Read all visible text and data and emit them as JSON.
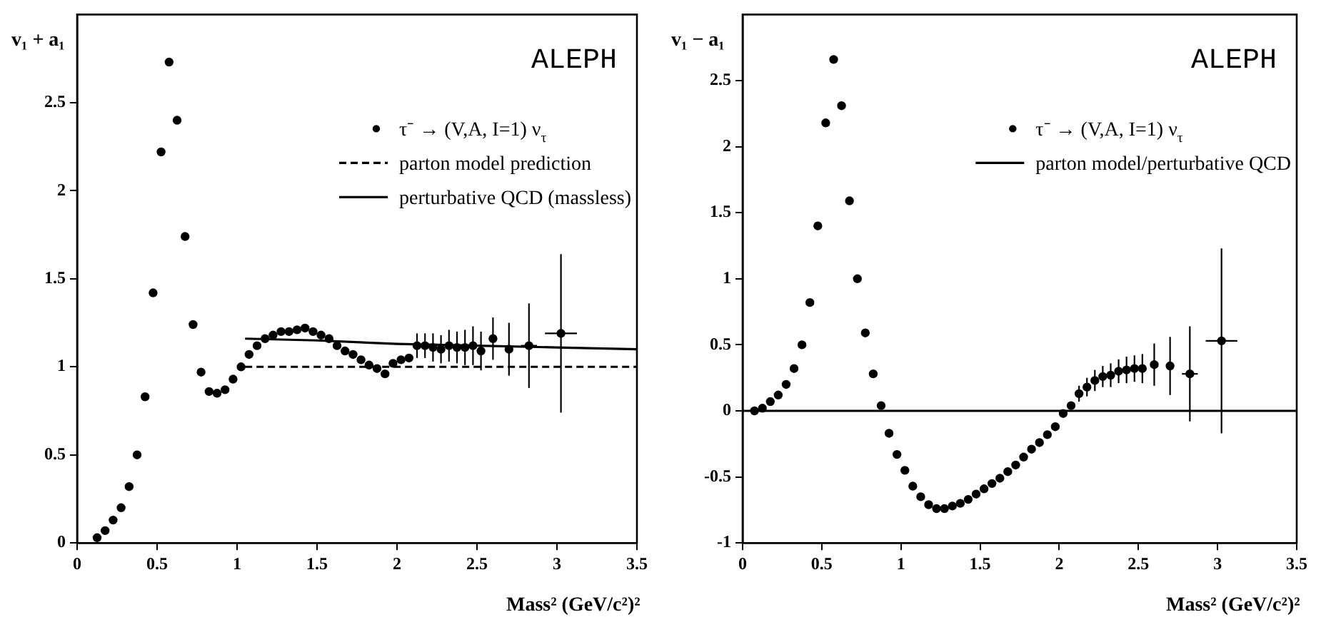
{
  "chart_data": [
    {
      "type": "scatter",
      "ylabel": "v₁ + a₁",
      "xlabel": "Mass² (GeV/c²)²",
      "annotations": [
        "ALEPH"
      ],
      "xlim": [
        0,
        3.5
      ],
      "xticks": [
        0,
        0.5,
        1,
        1.5,
        2,
        2.5,
        3,
        3.5
      ],
      "ylim": [
        0,
        3
      ],
      "yticks": [
        0,
        0.5,
        1,
        1.5,
        2,
        2.5
      ],
      "grid": false,
      "legend": "top right",
      "series": [
        {
          "name": "τ⁻ → (V,A, I=1) ν$_{τ}$",
          "color": "#000000",
          "marker": "circle",
          "x": [
            0.125,
            0.175,
            0.225,
            0.275,
            0.325,
            0.375,
            0.425,
            0.475,
            0.525,
            0.575,
            0.625,
            0.675,
            0.725,
            0.775,
            0.825,
            0.875,
            0.925,
            0.975,
            1.025,
            1.075,
            1.125,
            1.175,
            1.225,
            1.275,
            1.325,
            1.375,
            1.425,
            1.475,
            1.525,
            1.575,
            1.625,
            1.675,
            1.725,
            1.775,
            1.825,
            1.875,
            1.925,
            1.975,
            2.025,
            2.075,
            2.125,
            2.175,
            2.225,
            2.275,
            2.325,
            2.375,
            2.425,
            2.475,
            2.525,
            2.6,
            2.7,
            2.825,
            3.025
          ],
          "values": [
            0.03,
            0.07,
            0.13,
            0.2,
            0.32,
            0.5,
            0.83,
            1.42,
            2.22,
            2.73,
            2.4,
            1.74,
            1.24,
            0.97,
            0.86,
            0.85,
            0.87,
            0.93,
            1.0,
            1.07,
            1.12,
            1.16,
            1.18,
            1.2,
            1.2,
            1.21,
            1.22,
            1.2,
            1.18,
            1.16,
            1.12,
            1.09,
            1.07,
            1.04,
            1.01,
            0.99,
            0.96,
            1.02,
            1.04,
            1.05,
            1.12,
            1.12,
            1.11,
            1.1,
            1.12,
            1.11,
            1.11,
            1.12,
            1.09,
            1.16,
            1.1,
            1.12,
            1.19
          ],
          "errors": [
            null,
            null,
            null,
            null,
            null,
            null,
            null,
            null,
            null,
            null,
            null,
            null,
            null,
            null,
            null,
            null,
            null,
            null,
            null,
            null,
            null,
            null,
            null,
            null,
            null,
            null,
            null,
            null,
            null,
            null,
            null,
            null,
            null,
            null,
            null,
            null,
            null,
            null,
            null,
            null,
            0.07,
            0.07,
            0.08,
            0.08,
            0.09,
            0.09,
            0.1,
            0.11,
            0.11,
            0.12,
            0.15,
            0.24,
            0.45
          ],
          "xerrors": [
            null,
            null,
            null,
            null,
            null,
            null,
            null,
            null,
            null,
            null,
            null,
            null,
            null,
            null,
            null,
            null,
            null,
            null,
            null,
            null,
            null,
            null,
            null,
            null,
            null,
            null,
            null,
            null,
            null,
            null,
            null,
            null,
            null,
            null,
            null,
            null,
            null,
            null,
            null,
            null,
            null,
            null,
            null,
            null,
            null,
            null,
            null,
            null,
            null,
            null,
            null,
            0.05,
            0.1
          ]
        },
        {
          "name": "parton model prediction",
          "type": "line",
          "color": "#000000",
          "line_style": "dashed",
          "marker": "none",
          "x": [
            1.05,
            3.5
          ],
          "values": [
            1,
            1
          ]
        },
        {
          "name": "perturbative QCD (massless)",
          "type": "line",
          "color": "#000000",
          "line_style": "solid",
          "marker": "none",
          "x": [
            1.05,
            1.5,
            2,
            2.5,
            3,
            3.5
          ],
          "values": [
            1.16,
            1.15,
            1.13,
            1.12,
            1.11,
            1.1
          ]
        }
      ]
    },
    {
      "type": "scatter",
      "ylabel": "v₁ − a₁",
      "xlabel": "Mass² (GeV/c²)²",
      "annotations": [
        "ALEPH"
      ],
      "xlim": [
        0,
        3.5
      ],
      "xticks": [
        0,
        0.5,
        1,
        1.5,
        2,
        2.5,
        3,
        3.5
      ],
      "ylim": [
        -1,
        3
      ],
      "yticks": [
        -1,
        -0.5,
        0,
        0.5,
        1,
        1.5,
        2,
        2.5
      ],
      "grid": false,
      "legend": "top right",
      "series": [
        {
          "name": "τ⁻ → (V,A, I=1) ν$_{τ}$",
          "color": "#000000",
          "marker": "circle",
          "x": [
            0.075,
            0.125,
            0.175,
            0.225,
            0.275,
            0.325,
            0.375,
            0.425,
            0.475,
            0.525,
            0.575,
            0.625,
            0.675,
            0.725,
            0.775,
            0.825,
            0.875,
            0.925,
            0.975,
            1.025,
            1.075,
            1.125,
            1.175,
            1.225,
            1.275,
            1.325,
            1.375,
            1.425,
            1.475,
            1.525,
            1.575,
            1.625,
            1.675,
            1.725,
            1.775,
            1.825,
            1.875,
            1.925,
            1.975,
            2.025,
            2.075,
            2.125,
            2.175,
            2.225,
            2.275,
            2.325,
            2.375,
            2.425,
            2.475,
            2.525,
            2.6,
            2.7,
            2.825,
            3.025
          ],
          "values": [
            0.0,
            0.02,
            0.07,
            0.12,
            0.2,
            0.32,
            0.5,
            0.82,
            1.4,
            2.18,
            2.66,
            2.31,
            1.59,
            1.0,
            0.59,
            0.28,
            0.04,
            -0.17,
            -0.33,
            -0.45,
            -0.57,
            -0.65,
            -0.71,
            -0.74,
            -0.74,
            -0.72,
            -0.7,
            -0.67,
            -0.63,
            -0.59,
            -0.55,
            -0.51,
            -0.46,
            -0.41,
            -0.35,
            -0.29,
            -0.24,
            -0.18,
            -0.12,
            -0.02,
            0.04,
            0.13,
            0.18,
            0.23,
            0.26,
            0.27,
            0.3,
            0.31,
            0.32,
            0.32,
            0.35,
            0.34,
            0.28,
            0.53
          ],
          "errors": [
            null,
            null,
            null,
            null,
            null,
            null,
            null,
            null,
            null,
            null,
            null,
            null,
            null,
            null,
            null,
            null,
            null,
            null,
            null,
            null,
            null,
            null,
            null,
            null,
            null,
            null,
            null,
            null,
            null,
            null,
            null,
            null,
            null,
            null,
            null,
            null,
            null,
            null,
            null,
            null,
            null,
            0.06,
            0.07,
            0.08,
            0.08,
            0.09,
            0.09,
            0.1,
            0.1,
            0.11,
            0.16,
            0.22,
            0.36,
            0.7
          ],
          "xerrors": [
            null,
            null,
            null,
            null,
            null,
            null,
            null,
            null,
            null,
            null,
            null,
            null,
            null,
            null,
            null,
            null,
            null,
            null,
            null,
            null,
            null,
            null,
            null,
            null,
            null,
            null,
            null,
            null,
            null,
            null,
            null,
            null,
            null,
            null,
            null,
            null,
            null,
            null,
            null,
            null,
            null,
            null,
            null,
            null,
            null,
            null,
            null,
            null,
            null,
            null,
            null,
            null,
            0.05,
            0.1
          ]
        },
        {
          "name": "parton model/perturbative QCD",
          "type": "line",
          "color": "#000000",
          "line_style": "solid",
          "marker": "none",
          "x": [
            0,
            3.5
          ],
          "values": [
            0,
            0
          ]
        }
      ]
    }
  ]
}
